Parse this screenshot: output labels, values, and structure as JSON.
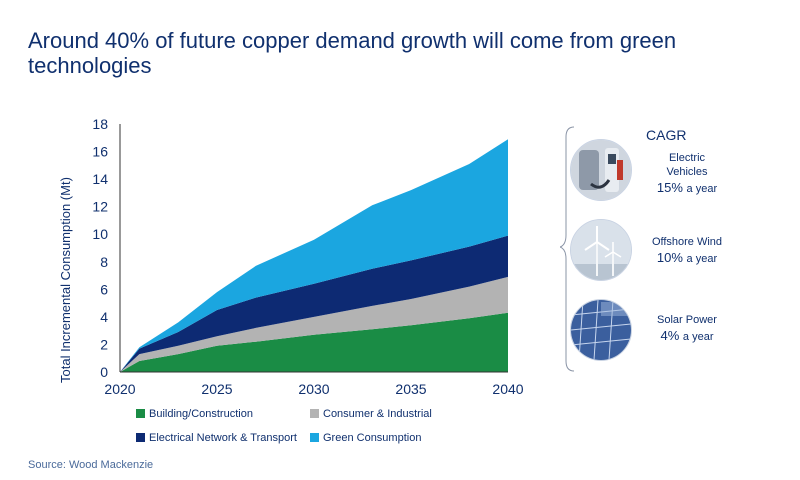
{
  "title": "Around 40% of future copper demand growth will come from green technologies",
  "source": "Source: Wood Mackenzie",
  "cagr": {
    "heading": "CAGR",
    "items": [
      {
        "name_line1": "Electric",
        "name_line2": "Vehicles",
        "rate": "15%",
        "unit": "a year",
        "icon": "electric-vehicle-charger-icon"
      },
      {
        "name_line1": "Offshore Wind",
        "name_line2": "",
        "rate": "10%",
        "unit": "a year",
        "icon": "wind-turbine-icon"
      },
      {
        "name_line1": "Solar Power",
        "name_line2": "",
        "rate": "4%",
        "unit": "a year",
        "icon": "solar-panel-icon"
      }
    ]
  },
  "chart_data": {
    "type": "area",
    "stacked": true,
    "ylabel": "Total Incremental Consumption (Mt)",
    "xlabel": "",
    "xlim": [
      2020,
      2040
    ],
    "ylim": [
      0,
      18
    ],
    "x_ticks": [
      2020,
      2025,
      2030,
      2035,
      2040
    ],
    "y_ticks": [
      0,
      2,
      4,
      6,
      8,
      10,
      12,
      14,
      16,
      18
    ],
    "x": [
      2020,
      2021,
      2023,
      2025,
      2027,
      2030,
      2033,
      2035,
      2038,
      2040
    ],
    "legend_position": "bottom",
    "series": [
      {
        "name": "Building/Construction",
        "color": "#1a8c45",
        "values": [
          0,
          0.8,
          1.3,
          1.9,
          2.2,
          2.7,
          3.1,
          3.4,
          3.9,
          4.3
        ]
      },
      {
        "name": "Consumer & Industrial",
        "color": "#b3b3b3",
        "values": [
          0,
          0.5,
          0.6,
          0.7,
          1.0,
          1.3,
          1.7,
          1.9,
          2.3,
          2.6
        ]
      },
      {
        "name": "Electrical Network & Transport",
        "color": "#0d2a73",
        "values": [
          0,
          0.4,
          1.0,
          1.9,
          2.2,
          2.4,
          2.7,
          2.8,
          2.9,
          3.0
        ]
      },
      {
        "name": "Green Consumption",
        "color": "#1ba6e0",
        "values": [
          0,
          0.1,
          0.7,
          1.3,
          2.3,
          3.2,
          4.6,
          5.1,
          6.0,
          7.0
        ]
      }
    ]
  }
}
